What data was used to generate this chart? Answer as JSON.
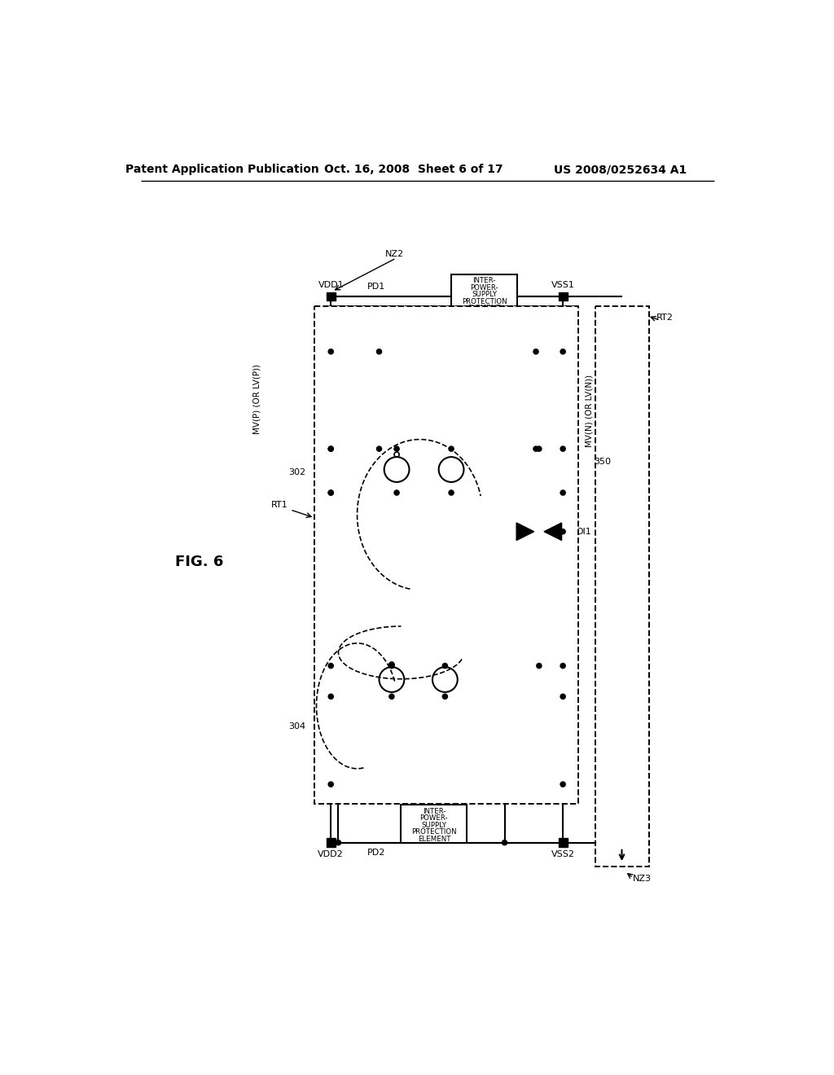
{
  "background_color": "#ffffff",
  "header_text": "Patent Application Publication",
  "header_date": "Oct. 16, 2008  Sheet 6 of 17",
  "header_patent": "US 2008/0252634 A1",
  "fig_label": "FIG. 6"
}
